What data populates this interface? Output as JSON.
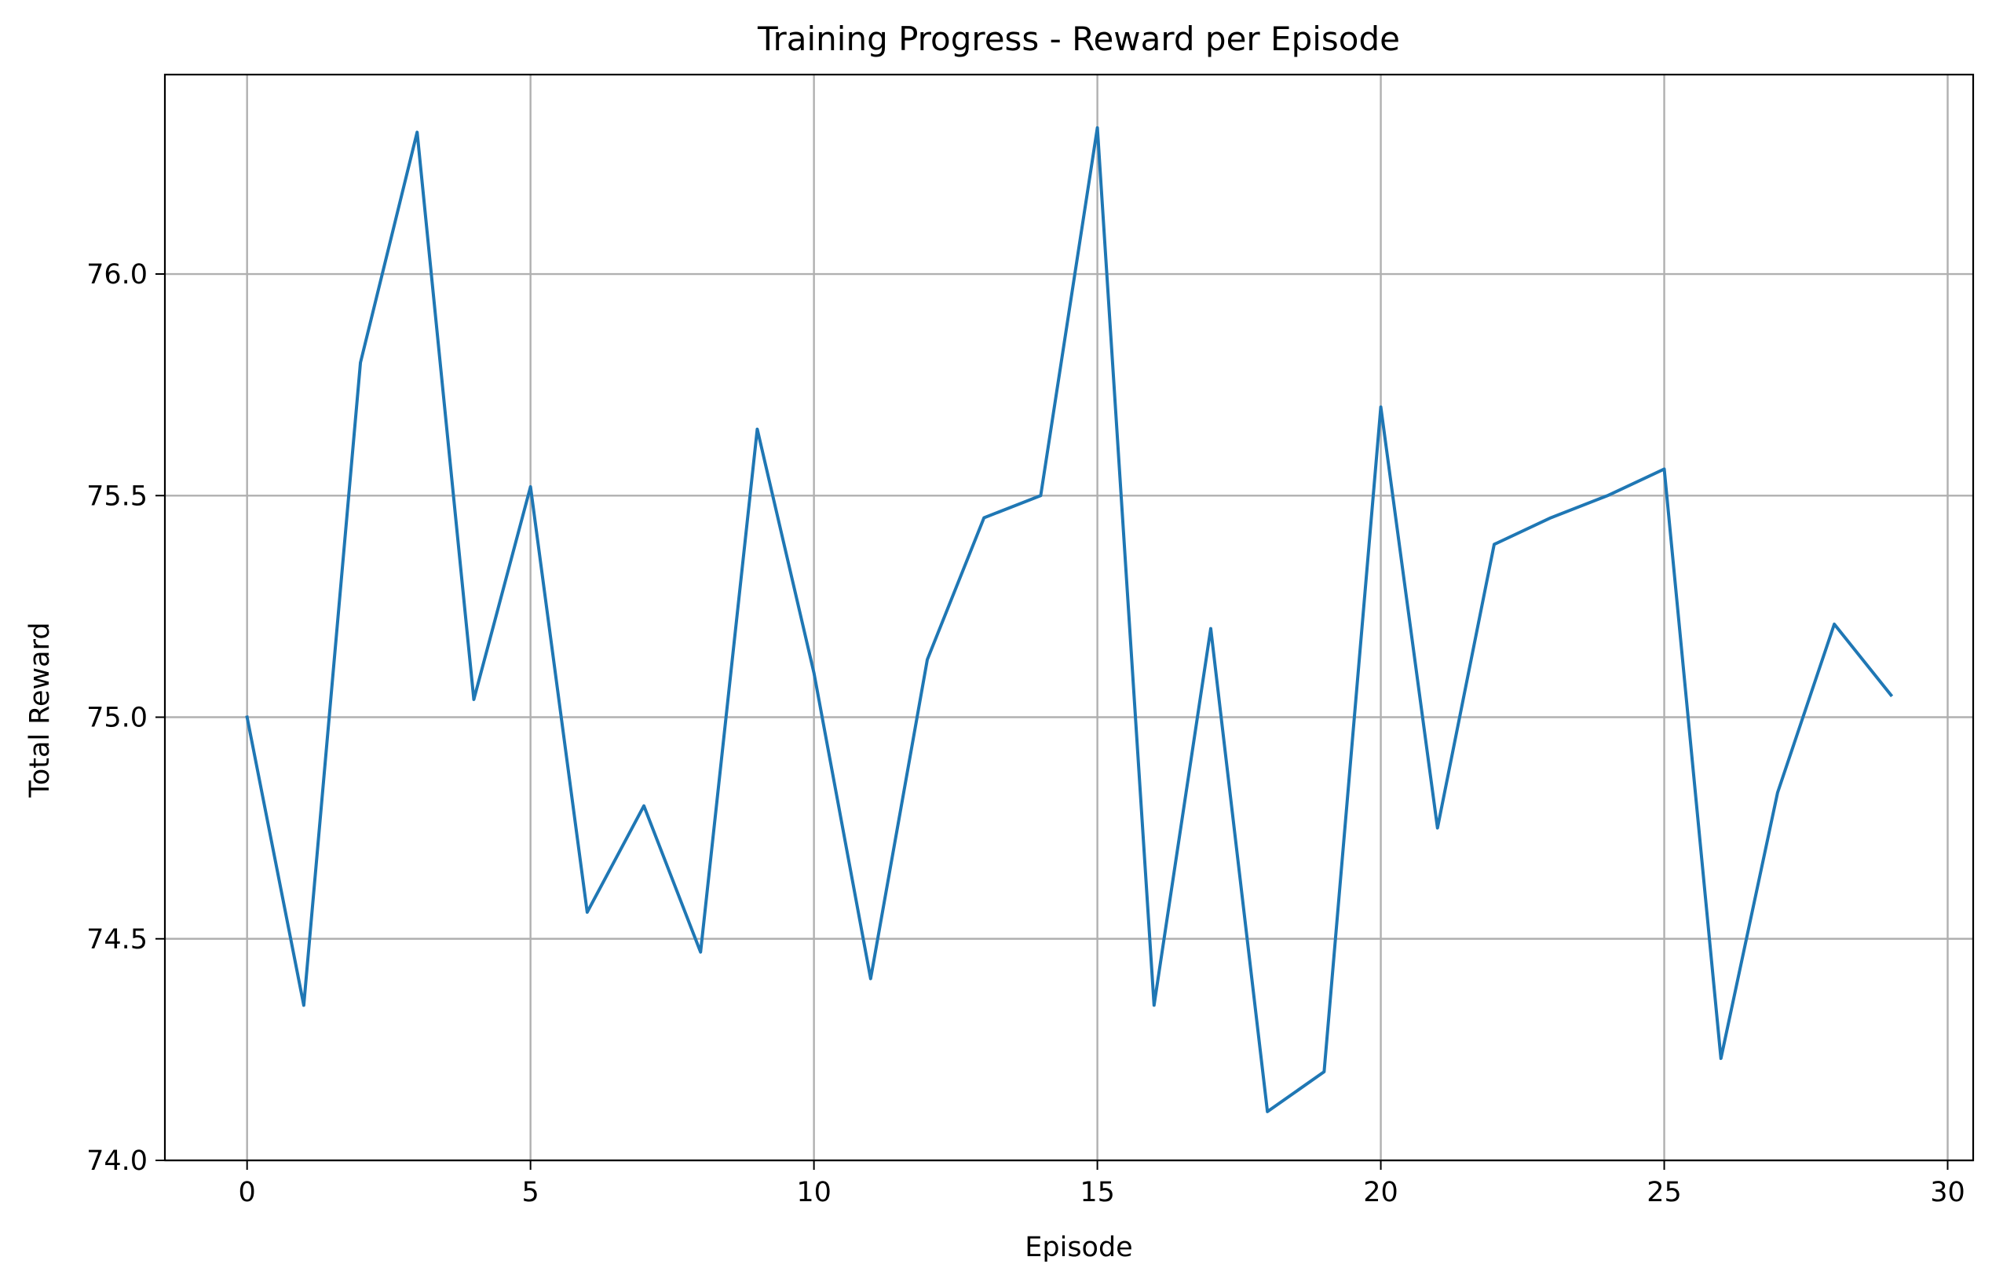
{
  "chart_data": {
    "type": "line",
    "title": "Training Progress - Reward per Episode",
    "xlabel": "Episode",
    "ylabel": "Total Reward",
    "xlim": [
      -1.45,
      30.45
    ],
    "ylim": [
      74.0,
      76.45
    ],
    "x_ticks": [
      0,
      5,
      10,
      15,
      20,
      25,
      30
    ],
    "y_ticks": [
      74.0,
      74.5,
      75.0,
      75.5,
      76.0
    ],
    "x_tick_labels": [
      "0",
      "5",
      "10",
      "15",
      "20",
      "25",
      "30"
    ],
    "y_tick_labels": [
      "74.0",
      "74.5",
      "75.0",
      "75.5",
      "76.0"
    ],
    "grid": true,
    "legend": "none",
    "series": [
      {
        "color": "#1f77b4",
        "x": [
          0,
          1,
          2,
          3,
          4,
          5,
          6,
          7,
          8,
          9,
          10,
          11,
          12,
          13,
          14,
          15,
          16,
          17,
          18,
          19,
          20,
          21,
          22,
          23,
          24,
          25,
          26,
          27,
          28,
          29
        ],
        "values": [
          75.0,
          74.35,
          75.8,
          76.32,
          75.04,
          75.52,
          74.56,
          74.8,
          74.47,
          75.65,
          75.1,
          74.41,
          75.13,
          75.45,
          75.5,
          76.33,
          74.35,
          75.2,
          74.11,
          74.2,
          75.7,
          74.75,
          75.39,
          75.45,
          75.5,
          75.56,
          74.23,
          74.83,
          75.21,
          75.05
        ]
      }
    ]
  }
}
